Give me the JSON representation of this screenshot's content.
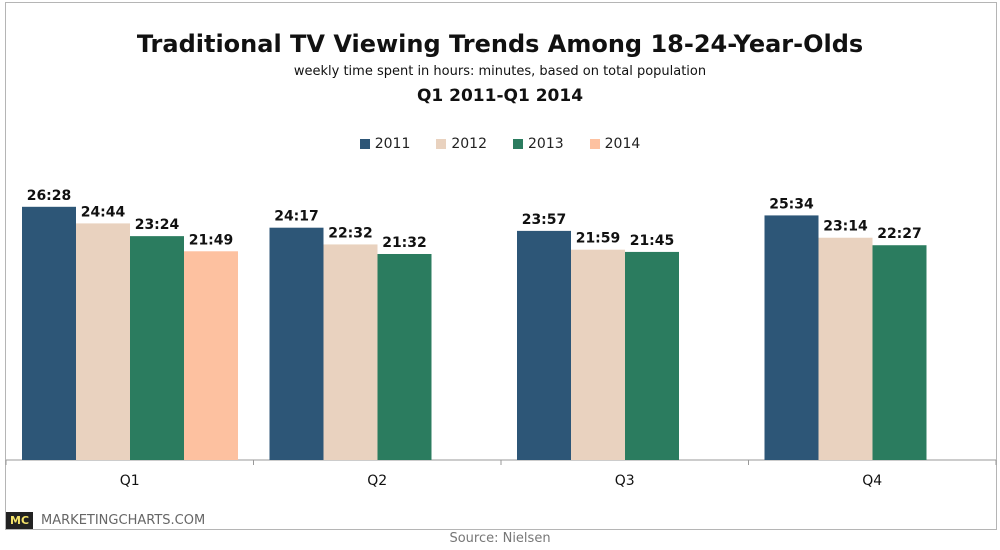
{
  "chart_data": {
    "type": "bar",
    "title": "Traditional TV Viewing Trends Among 18-24-Year-Olds",
    "subtitle": "weekly time spent in hours: minutes, based on total population",
    "subtitle2": "Q1 2011-Q1 2014",
    "categories": [
      "Q1",
      "Q2",
      "Q3",
      "Q4"
    ],
    "series": [
      {
        "name": "2011",
        "color": "#2d5677",
        "values": [
          "26:28",
          "24:17",
          "23:57",
          "25:34"
        ]
      },
      {
        "name": "2012",
        "color": "#e9d2bf",
        "values": [
          "24:44",
          "22:32",
          "21:59",
          "23:14"
        ]
      },
      {
        "name": "2013",
        "color": "#2b7c5f",
        "values": [
          "23:24",
          "21:32",
          "21:45",
          "22:27"
        ]
      },
      {
        "name": "2014",
        "color": "#fdc1a0",
        "values": [
          "21:49",
          null,
          null,
          null
        ]
      }
    ],
    "value_unit": "hours:minutes",
    "ylim": [
      0,
      30
    ],
    "grid": false,
    "legend": "top-center"
  },
  "branding": {
    "logo_mark": "MC",
    "logo_text": "MARKETINGCHARTS.COM"
  },
  "source": "Source: Nielsen"
}
